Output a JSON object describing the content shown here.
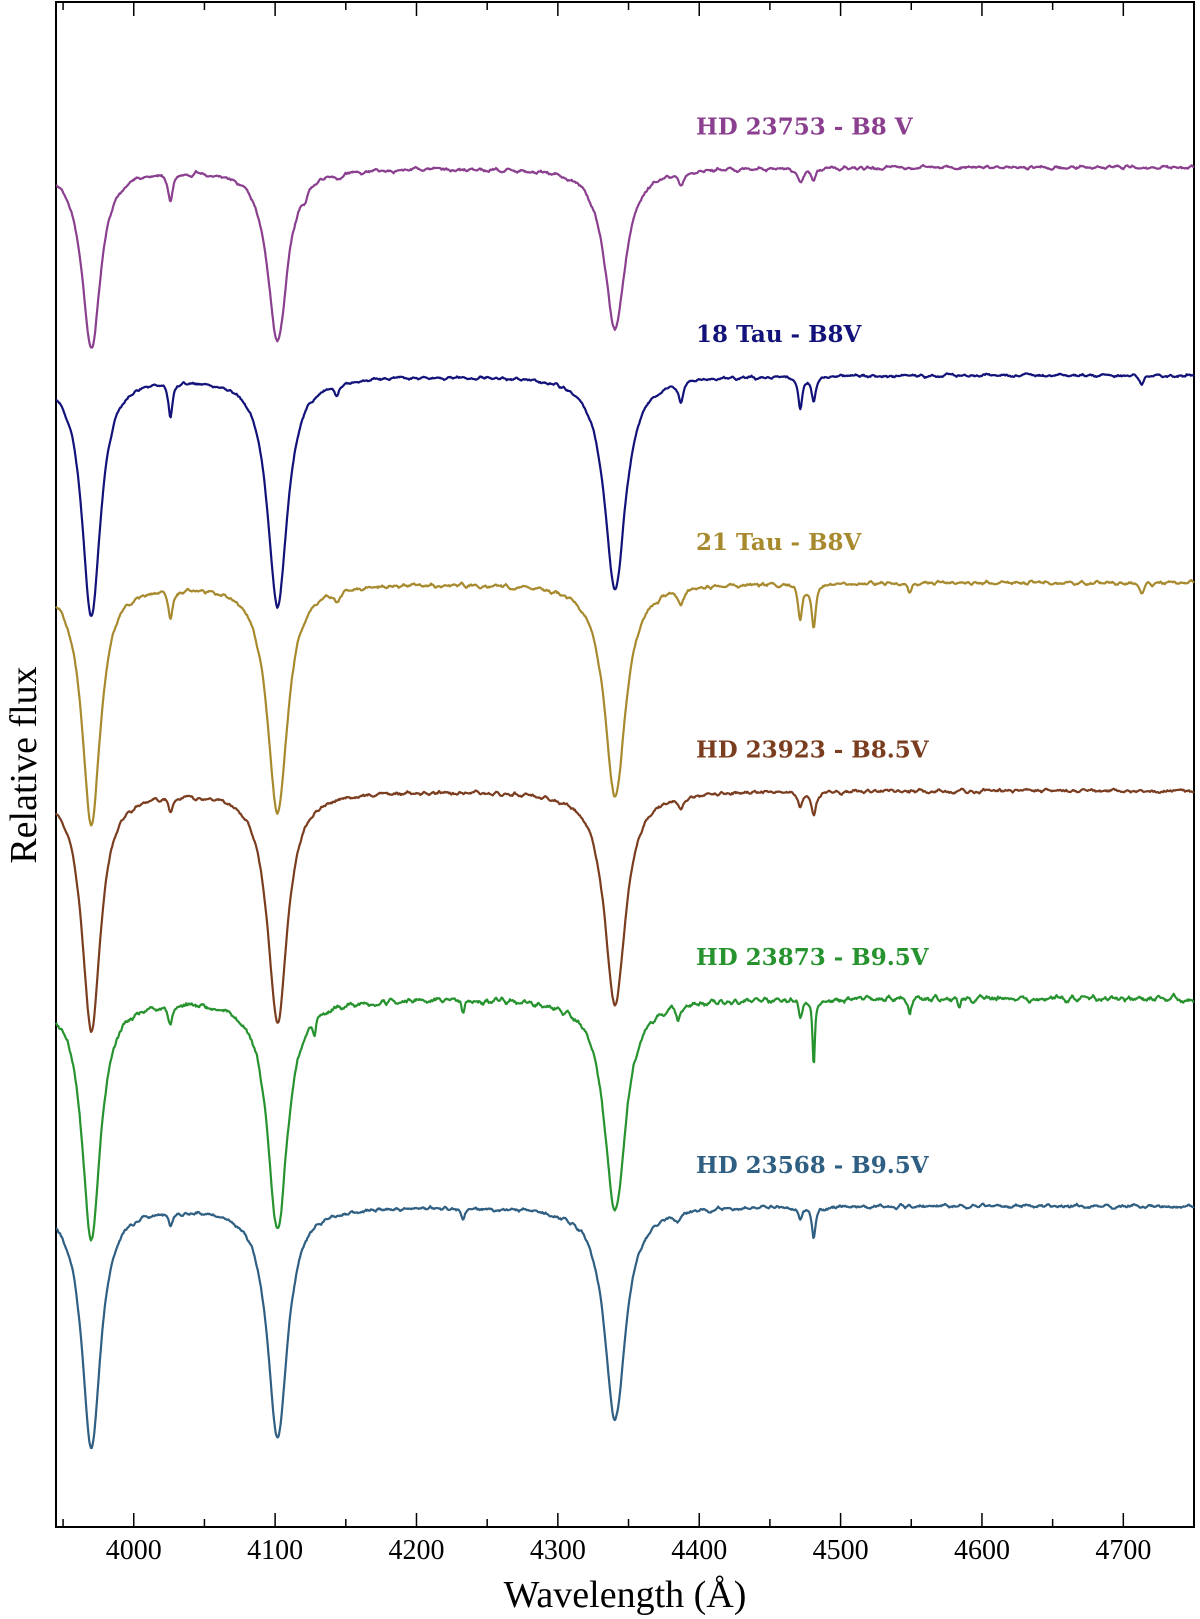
{
  "chart_data": {
    "type": "line",
    "title": "",
    "xlabel": "Wavelength (Å)",
    "ylabel": "Relative flux",
    "xlim": [
      3945,
      4750
    ],
    "x_ticks": [
      4000,
      4100,
      4200,
      4300,
      4400,
      4500,
      4600,
      4700
    ],
    "x_tick_labels": [
      "4000",
      "4100",
      "4200",
      "4300",
      "4400",
      "4500",
      "4600",
      "4700"
    ],
    "y_ticks_labeled": false,
    "grid": false,
    "legend": "labels placed above each spectrum",
    "continuum_step": 0.64,
    "ylim": [
      -0.35,
      4.35
    ],
    "series": [
      {
        "name": "HD 23753 - B8 V",
        "color": "#8b3f8f",
        "offset": 3.84,
        "depth_scale": 0.75,
        "noise": 0.006,
        "lines": [
          [
            3970,
            0.74,
            8
          ],
          [
            4101.7,
            0.71,
            8.5
          ],
          [
            4340.5,
            0.66,
            9
          ],
          [
            4026,
            0.085,
            2
          ],
          [
            4121,
            0.02,
            2
          ],
          [
            4144,
            0.018,
            2
          ],
          [
            4387,
            0.035,
            2.5
          ],
          [
            4471.5,
            0.045,
            2.5
          ],
          [
            4481,
            0.03,
            2
          ]
        ]
      },
      {
        "name": "18 Tau - B8V",
        "color": "#12127a",
        "offset": 3.2,
        "depth_scale": 1.0,
        "noise": 0.005,
        "lines": [
          [
            3970,
            0.74,
            8
          ],
          [
            4101.7,
            0.71,
            8.5
          ],
          [
            4340.5,
            0.66,
            9
          ],
          [
            4026,
            0.105,
            1.8
          ],
          [
            4144,
            0.035,
            2
          ],
          [
            4387,
            0.06,
            2
          ],
          [
            4471.5,
            0.1,
            1.8
          ],
          [
            4481,
            0.07,
            1.8
          ],
          [
            4713,
            0.03,
            1.8
          ]
        ]
      },
      {
        "name": "21 Tau - B8V",
        "color": "#a88a2e",
        "offset": 2.56,
        "depth_scale": 1.0,
        "noise": 0.006,
        "lines": [
          [
            3970,
            0.74,
            8
          ],
          [
            4101.7,
            0.71,
            8.5
          ],
          [
            4340.5,
            0.66,
            9
          ],
          [
            4026,
            0.09,
            1.8
          ],
          [
            4144,
            0.03,
            2
          ],
          [
            4387,
            0.05,
            2
          ],
          [
            4471.5,
            0.1,
            1.8
          ],
          [
            4481,
            0.13,
            1.8
          ],
          [
            4549,
            0.03,
            1.8
          ],
          [
            4713,
            0.03,
            1.8
          ]
        ]
      },
      {
        "name": "HD 23923 - B8.5V",
        "color": "#7b3d1f",
        "offset": 1.92,
        "depth_scale": 1.0,
        "noise": 0.006,
        "lines": [
          [
            3970,
            0.74,
            8
          ],
          [
            4101.7,
            0.71,
            8.5
          ],
          [
            4340.5,
            0.66,
            9
          ],
          [
            4026,
            0.045,
            1.8
          ],
          [
            4387,
            0.04,
            2
          ],
          [
            4471.5,
            0.045,
            1.8
          ],
          [
            4481,
            0.07,
            2
          ]
        ]
      },
      {
        "name": "HD 23873 - B9.5V",
        "color": "#27932f",
        "offset": 1.28,
        "depth_scale": 1.0,
        "noise": 0.009,
        "lines": [
          [
            3970,
            0.74,
            8
          ],
          [
            4101.7,
            0.71,
            8.5
          ],
          [
            4340.5,
            0.66,
            9
          ],
          [
            4026,
            0.06,
            1.8
          ],
          [
            4128,
            0.05,
            1.2
          ],
          [
            4233,
            0.04,
            1.2
          ],
          [
            4385,
            0.045,
            1.5
          ],
          [
            4471.5,
            0.05,
            1.5
          ],
          [
            4481,
            0.21,
            1.0
          ],
          [
            4549,
            0.05,
            1.2
          ],
          [
            4584,
            0.03,
            1.2
          ]
        ]
      },
      {
        "name": "HD 23568 - B9.5V",
        "color": "#2f5f82",
        "offset": 0.64,
        "depth_scale": 1.0,
        "noise": 0.006,
        "lines": [
          [
            3970,
            0.74,
            8
          ],
          [
            4101.7,
            0.71,
            8.5
          ],
          [
            4340.5,
            0.66,
            9
          ],
          [
            4026,
            0.04,
            1.8
          ],
          [
            4233,
            0.03,
            1.5
          ],
          [
            4385,
            0.03,
            2
          ],
          [
            4471.5,
            0.03,
            1.8
          ],
          [
            4481,
            0.1,
            1.5
          ]
        ]
      }
    ]
  }
}
